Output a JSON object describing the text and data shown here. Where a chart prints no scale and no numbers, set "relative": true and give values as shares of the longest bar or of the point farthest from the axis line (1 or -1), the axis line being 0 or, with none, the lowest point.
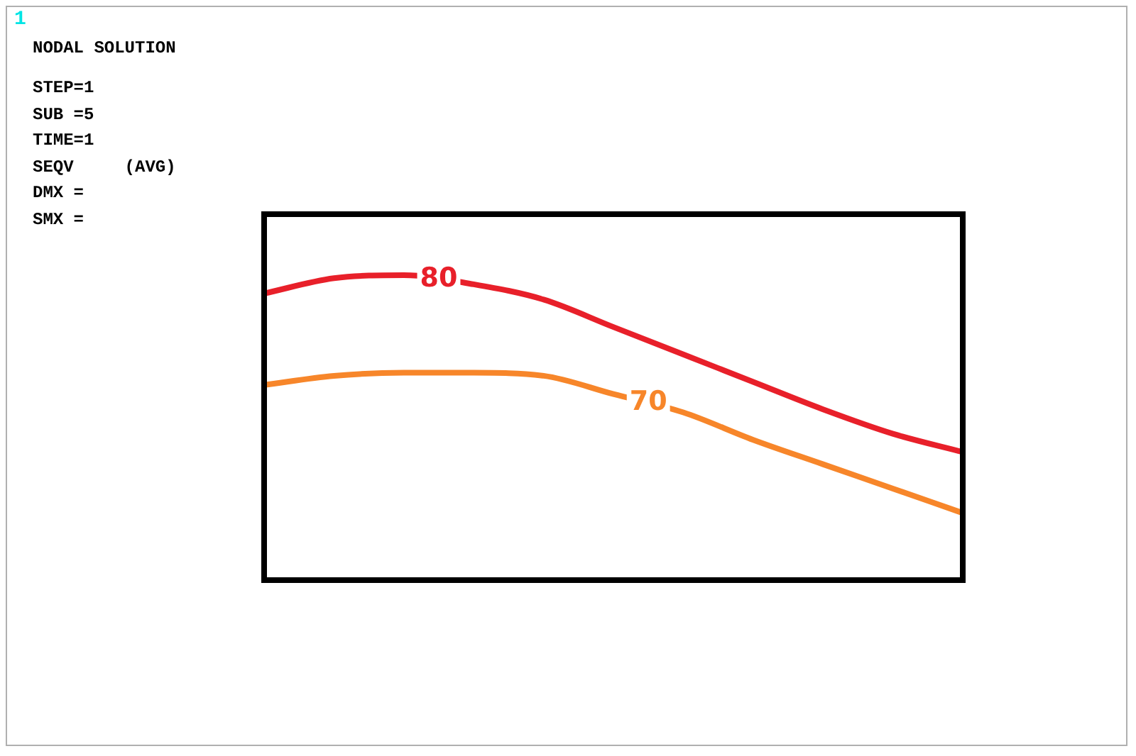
{
  "chart_data": {
    "type": "line",
    "relative": true,
    "annotations": [
      "1",
      "NODAL SOLUTION",
      "STEP=1",
      "SUB =5",
      "TIME=1",
      "SEQV     (AVG)",
      "DMX =",
      "SMX ="
    ],
    "categories": [
      null,
      null,
      null,
      null,
      null,
      null,
      null,
      null,
      null,
      null,
      null
    ],
    "series": [
      {
        "name": "80",
        "color": "#e8202a",
        "values": [
          0.94,
          0.99,
          1,
          0.97,
          0.92,
          0.83,
          0.74,
          0.65,
          0.56,
          0.48,
          0.42
        ]
      },
      {
        "name": "70",
        "color": "#f7862a",
        "values": [
          0.64,
          0.67,
          0.68,
          0.68,
          0.67,
          0.61,
          0.55,
          0.46,
          0.38,
          0.3,
          0.22
        ]
      }
    ]
  }
}
